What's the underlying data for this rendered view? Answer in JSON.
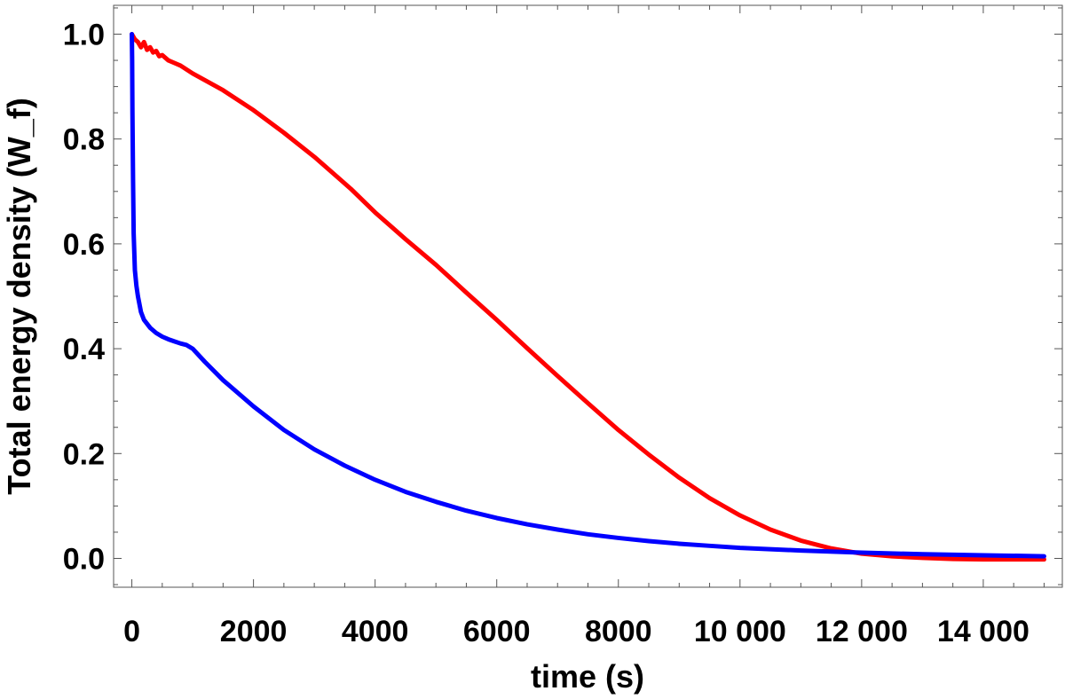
{
  "chart_data": {
    "type": "line",
    "title": "",
    "xlabel": "time (s)",
    "ylabel": "Total energy density (W_f)",
    "xlim": [
      -300,
      15300
    ],
    "ylim": [
      -0.055,
      1.055
    ],
    "x_ticks_major": [
      0,
      2000,
      4000,
      6000,
      8000,
      10000,
      12000,
      14000
    ],
    "x_tick_labels": [
      "0",
      "2000",
      "4000",
      "6000",
      "8000",
      "10 000",
      "12 000",
      "14 000"
    ],
    "y_ticks_major": [
      0.0,
      0.2,
      0.4,
      0.6,
      0.8,
      1.0
    ],
    "y_tick_labels": [
      "0.0",
      "0.2",
      "0.4",
      "0.6",
      "0.8",
      "1.0"
    ],
    "grid": false,
    "legend": "none",
    "series": [
      {
        "color": "#ff0000",
        "x": [
          0,
          50,
          100,
          150,
          200,
          250,
          300,
          350,
          400,
          450,
          500,
          600,
          700,
          800,
          1000,
          1500,
          2000,
          2500,
          3000,
          3600,
          4000,
          4500,
          5000,
          5500,
          6000,
          6500,
          7000,
          7500,
          8000,
          8500,
          9000,
          9500,
          10000,
          10500,
          11000,
          11500,
          12000,
          12500,
          13000,
          13500,
          14000,
          14500,
          15000
        ],
        "y": [
          1.0,
          0.99,
          0.985,
          0.975,
          0.985,
          0.97,
          0.975,
          0.965,
          0.968,
          0.958,
          0.96,
          0.95,
          0.945,
          0.94,
          0.925,
          0.893,
          0.855,
          0.812,
          0.766,
          0.705,
          0.66,
          0.609,
          0.56,
          0.507,
          0.455,
          0.401,
          0.348,
          0.296,
          0.245,
          0.198,
          0.154,
          0.115,
          0.082,
          0.055,
          0.034,
          0.019,
          0.009,
          0.004,
          0.001,
          -0.001,
          -0.002,
          -0.002,
          -0.002
        ]
      },
      {
        "color": "#0000ff",
        "x": [
          0,
          5,
          10,
          20,
          30,
          50,
          75,
          100,
          150,
          200,
          300,
          400,
          500,
          600,
          700,
          800,
          900,
          1000,
          1200,
          1500,
          2000,
          2500,
          3000,
          3500,
          4000,
          4500,
          5000,
          5500,
          6000,
          6500,
          7000,
          7500,
          8000,
          8500,
          9000,
          9500,
          10000,
          11000,
          12000,
          13000,
          14000,
          15000
        ],
        "y": [
          1.0,
          0.95,
          0.85,
          0.72,
          0.62,
          0.55,
          0.52,
          0.5,
          0.47,
          0.455,
          0.44,
          0.43,
          0.423,
          0.418,
          0.414,
          0.41,
          0.407,
          0.4,
          0.375,
          0.34,
          0.29,
          0.245,
          0.208,
          0.177,
          0.15,
          0.127,
          0.108,
          0.091,
          0.077,
          0.065,
          0.055,
          0.046,
          0.039,
          0.033,
          0.028,
          0.024,
          0.02,
          0.015,
          0.011,
          0.008,
          0.006,
          0.004
        ]
      }
    ]
  }
}
